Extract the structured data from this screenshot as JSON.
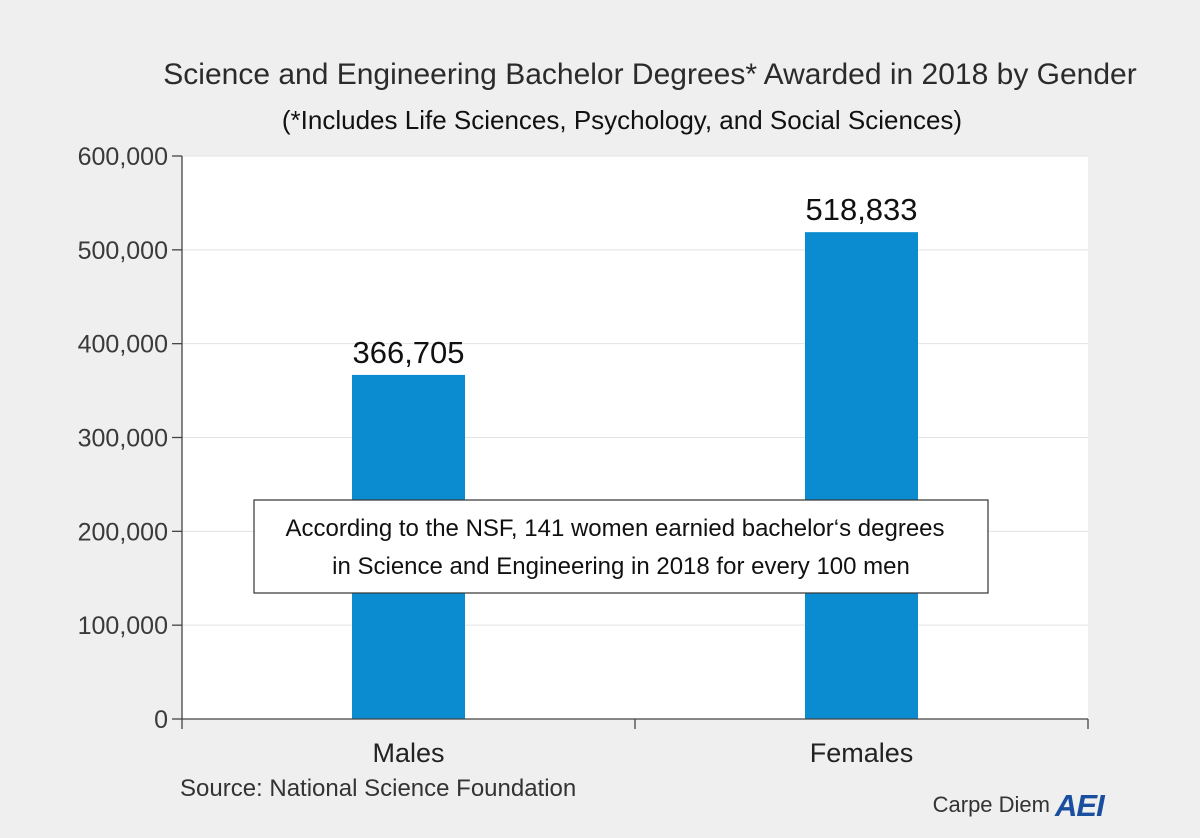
{
  "chart_data": {
    "type": "bar",
    "title": "Science and Engineering Bachelor Degrees* Awarded in 2018 by Gender",
    "subtitle": "(*Includes Life Sciences, Psychology, and Social Sciences)",
    "categories": [
      "Males",
      "Females"
    ],
    "values": [
      366705,
      518833
    ],
    "value_labels": [
      "366,705",
      "518,833"
    ],
    "ylim": [
      0,
      600000
    ],
    "yticks": [
      0,
      100000,
      200000,
      300000,
      400000,
      500000,
      600000
    ],
    "ytick_labels": [
      "0",
      "100,000",
      "200,000",
      "300,000",
      "400,000",
      "500,000",
      "600,000"
    ],
    "grid": true,
    "bar_color": "#0b8bd0",
    "annotation": {
      "line1": "According to the NSF, 141 women earnied bachelor‘s degrees",
      "line2": "in Science and Engineering in 2018 for every 100 men"
    },
    "source": "Source: National Science Foundation",
    "brand": {
      "text": "Carpe Diem",
      "logo_text": "AEI",
      "logo_color": "#1a4fa0"
    }
  }
}
